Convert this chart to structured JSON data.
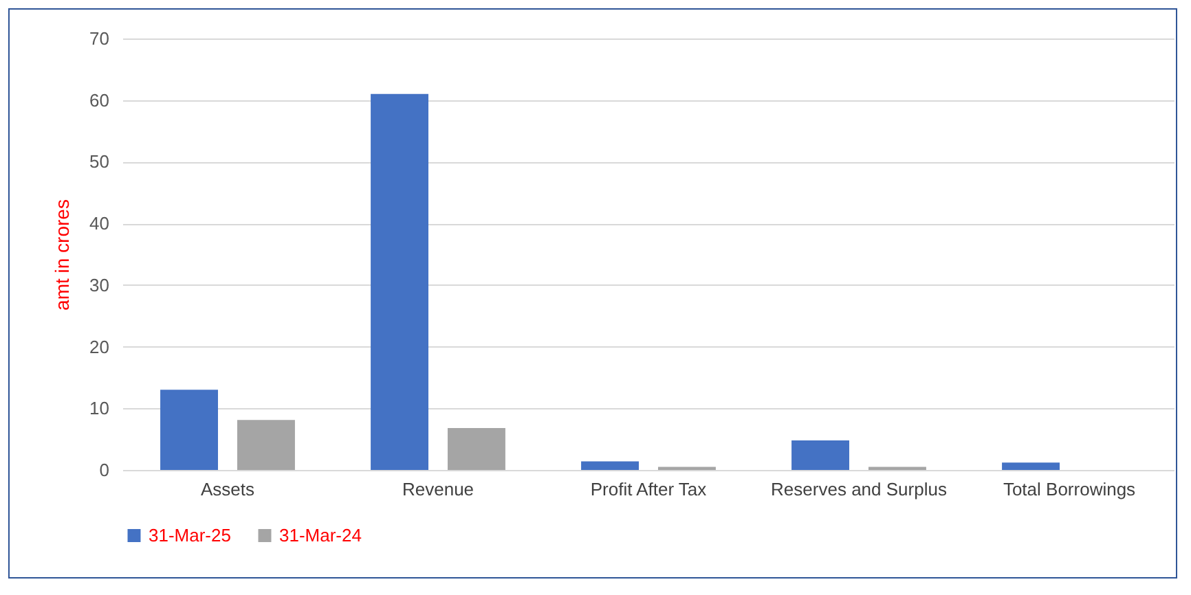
{
  "chart_data": {
    "type": "bar",
    "ylabel": "amt in crores",
    "categories": [
      "Assets",
      "Revenue",
      "Profit After Tax",
      "Reserves and Surplus",
      "Total Borrowings"
    ],
    "series": [
      {
        "name": "31-Mar-25",
        "color": "#4472c4",
        "values": [
          13,
          61,
          1.4,
          4.8,
          1.2
        ]
      },
      {
        "name": "31-Mar-24",
        "color": "#a5a5a5",
        "values": [
          8.1,
          6.8,
          0.5,
          0.5,
          0
        ]
      }
    ],
    "ylim": [
      0,
      70
    ],
    "yticks": [
      0,
      10,
      20,
      30,
      40,
      50,
      60,
      70
    ],
    "grid": "y",
    "legend": "bottom"
  }
}
